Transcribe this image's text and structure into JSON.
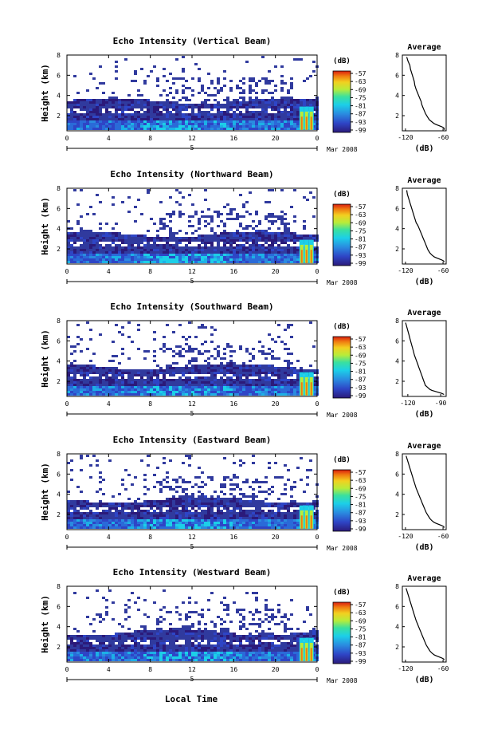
{
  "figure": {
    "xlabel_common": "Local Time",
    "date_label": "Mar 2008",
    "colorbar_unit": "(dB)",
    "colorbar_ticks": [
      "-57",
      "-63",
      "-69",
      "-75",
      "-81",
      "-87",
      "-93",
      "-99"
    ],
    "avg_title": "Average",
    "avg_xlabel": "(dB)"
  },
  "chart_data": [
    {
      "type": "heatmap",
      "title": "Echo Intensity (Vertical Beam)",
      "ylabel": "Height (km)",
      "xlabel": "",
      "x_ticks": [
        "0",
        "4",
        "8",
        "12",
        "16",
        "20",
        "0"
      ],
      "x_range": [
        0,
        24
      ],
      "y_ticks": [
        "2",
        "4",
        "6",
        "8"
      ],
      "y_range": [
        0.5,
        8
      ],
      "day_label": "5",
      "colorbar": {
        "range": [
          -99,
          -57
        ],
        "ticks": [
          "-57",
          "-63",
          "-69",
          "-75",
          "-81",
          "-87",
          "-93",
          "-99"
        ]
      },
      "average": {
        "type": "line",
        "title": "Average",
        "xlabel": "(dB)",
        "x_ticks": [
          "-120",
          "-60"
        ],
        "xlim": [
          -125,
          -55
        ],
        "ylim": [
          0.5,
          8
        ],
        "y_ticks": [
          "2",
          "4",
          "6",
          "8"
        ],
        "x": [
          -118,
          -116,
          -113,
          -112,
          -110,
          -108,
          -106,
          -105,
          -103,
          -101,
          -99,
          -97,
          -95,
          -94,
          -92,
          -90,
          -88,
          -85,
          -82,
          -78,
          -74,
          -70,
          -66,
          -62,
          -59,
          -58,
          -58
        ],
        "y": [
          7.8,
          7.4,
          7.0,
          6.6,
          6.2,
          5.8,
          5.4,
          5.0,
          4.6,
          4.3,
          4.0,
          3.7,
          3.4,
          3.1,
          2.8,
          2.5,
          2.2,
          1.9,
          1.6,
          1.4,
          1.2,
          1.1,
          1.0,
          0.9,
          0.8,
          0.7,
          0.6
        ]
      }
    },
    {
      "type": "heatmap",
      "title": "Echo Intensity (Northward Beam)",
      "ylabel": "Height (km)",
      "xlabel": "",
      "x_ticks": [
        "0",
        "4",
        "8",
        "12",
        "16",
        "20",
        "0"
      ],
      "x_range": [
        0,
        24
      ],
      "y_ticks": [
        "2",
        "4",
        "6",
        "8"
      ],
      "y_range": [
        0.5,
        8
      ],
      "day_label": "5",
      "colorbar": {
        "range": [
          -99,
          -57
        ],
        "ticks": [
          "-57",
          "-63",
          "-69",
          "-75",
          "-81",
          "-87",
          "-93",
          "-99"
        ]
      },
      "average": {
        "type": "line",
        "title": "Average",
        "xlabel": "(dB)",
        "x_ticks": [
          "-120",
          "-60"
        ],
        "xlim": [
          -125,
          -55
        ],
        "ylim": [
          0.5,
          8
        ],
        "y_ticks": [
          "2",
          "4",
          "6",
          "8"
        ],
        "x": [
          -118,
          -117,
          -115,
          -113,
          -111,
          -109,
          -107,
          -105,
          -103,
          -100,
          -98,
          -96,
          -94,
          -92,
          -90,
          -88,
          -86,
          -84,
          -81,
          -78,
          -74,
          -70,
          -66,
          -62,
          -59,
          -58
        ],
        "y": [
          7.8,
          7.4,
          7.0,
          6.6,
          6.2,
          5.8,
          5.4,
          5.0,
          4.6,
          4.3,
          4.0,
          3.7,
          3.4,
          3.1,
          2.8,
          2.5,
          2.2,
          1.9,
          1.6,
          1.4,
          1.2,
          1.1,
          1.0,
          0.9,
          0.8,
          0.7
        ]
      }
    },
    {
      "type": "heatmap",
      "title": "Echo Intensity (Southward Beam)",
      "ylabel": "Height (km)",
      "xlabel": "",
      "x_ticks": [
        "0",
        "4",
        "8",
        "12",
        "16",
        "20",
        "0"
      ],
      "x_range": [
        0,
        24
      ],
      "y_ticks": [
        "2",
        "4",
        "6",
        "8"
      ],
      "y_range": [
        0.5,
        8
      ],
      "day_label": "5",
      "colorbar": {
        "range": [
          -99,
          -57
        ],
        "ticks": [
          "-57",
          "-63",
          "-69",
          "-75",
          "-81",
          "-87",
          "-93",
          "-99"
        ]
      },
      "average": {
        "type": "line",
        "title": "Average",
        "xlabel": "(dB)",
        "x_ticks": [
          "-120",
          "-90"
        ],
        "xlim": [
          -125,
          -85
        ],
        "ylim": [
          0.5,
          8
        ],
        "y_ticks": [
          "2",
          "4",
          "6",
          "8"
        ],
        "x": [
          -122,
          -121,
          -120,
          -119,
          -118,
          -117,
          -116,
          -115,
          -114,
          -113,
          -112,
          -111,
          -110,
          -109,
          -108,
          -107,
          -106,
          -105,
          -104,
          -102,
          -100,
          -98,
          -95,
          -92,
          -89,
          -87
        ],
        "y": [
          7.8,
          7.4,
          7.0,
          6.6,
          6.2,
          5.8,
          5.4,
          5.0,
          4.6,
          4.3,
          4.0,
          3.7,
          3.4,
          3.1,
          2.8,
          2.5,
          2.2,
          1.9,
          1.6,
          1.4,
          1.2,
          1.1,
          1.0,
          0.9,
          0.8,
          0.7
        ]
      }
    },
    {
      "type": "heatmap",
      "title": "Echo Intensity (Eastward Beam)",
      "ylabel": "Height (km)",
      "xlabel": "",
      "x_ticks": [
        "0",
        "4",
        "8",
        "12",
        "16",
        "20",
        "0"
      ],
      "x_range": [
        0,
        24
      ],
      "y_ticks": [
        "2",
        "4",
        "6",
        "8"
      ],
      "y_range": [
        0.5,
        8
      ],
      "day_label": "5",
      "colorbar": {
        "range": [
          -99,
          -57
        ],
        "ticks": [
          "-57",
          "-63",
          "-69",
          "-75",
          "-81",
          "-87",
          "-93",
          "-99"
        ]
      },
      "average": {
        "type": "line",
        "title": "Average",
        "xlabel": "(dB)",
        "x_ticks": [
          "-120",
          "-60"
        ],
        "xlim": [
          -125,
          -55
        ],
        "ylim": [
          0.5,
          8
        ],
        "y_ticks": [
          "2",
          "4",
          "6",
          "8"
        ],
        "x": [
          -119,
          -117,
          -115,
          -113,
          -111,
          -109,
          -107,
          -105,
          -103,
          -101,
          -99,
          -97,
          -95,
          -93,
          -91,
          -89,
          -87,
          -84,
          -81,
          -78,
          -74,
          -70,
          -66,
          -62,
          -59,
          -58
        ],
        "y": [
          7.8,
          7.4,
          7.0,
          6.6,
          6.2,
          5.8,
          5.4,
          5.0,
          4.6,
          4.3,
          4.0,
          3.7,
          3.4,
          3.1,
          2.8,
          2.5,
          2.2,
          1.9,
          1.6,
          1.4,
          1.2,
          1.1,
          1.0,
          0.9,
          0.8,
          0.7
        ]
      }
    },
    {
      "type": "heatmap",
      "title": "Echo Intensity (Westward Beam)",
      "ylabel": "Height (km)",
      "xlabel": "Local Time",
      "x_ticks": [
        "0",
        "4",
        "8",
        "12",
        "16",
        "20",
        "0"
      ],
      "x_range": [
        0,
        24
      ],
      "y_ticks": [
        "2",
        "4",
        "6",
        "8"
      ],
      "y_range": [
        0.5,
        8
      ],
      "day_label": "5",
      "colorbar": {
        "range": [
          -99,
          -57
        ],
        "ticks": [
          "-57",
          "-63",
          "-69",
          "-75",
          "-81",
          "-87",
          "-93",
          "-99"
        ]
      },
      "average": {
        "type": "line",
        "title": "Average",
        "xlabel": "(dB)",
        "x_ticks": [
          "-120",
          "-60"
        ],
        "xlim": [
          -125,
          -55
        ],
        "ylim": [
          0.5,
          8
        ],
        "y_ticks": [
          "2",
          "4",
          "6",
          "8"
        ],
        "x": [
          -119,
          -117,
          -115,
          -113,
          -111,
          -109,
          -107,
          -105,
          -103,
          -101,
          -99,
          -97,
          -95,
          -93,
          -91,
          -89,
          -87,
          -84,
          -81,
          -78,
          -74,
          -70,
          -66,
          -62,
          -59,
          -58
        ],
        "y": [
          7.8,
          7.4,
          7.0,
          6.6,
          6.2,
          5.8,
          5.4,
          5.0,
          4.6,
          4.3,
          4.0,
          3.7,
          3.4,
          3.1,
          2.8,
          2.5,
          2.2,
          1.9,
          1.6,
          1.4,
          1.2,
          1.1,
          1.0,
          0.9,
          0.8,
          0.7
        ]
      }
    }
  ]
}
